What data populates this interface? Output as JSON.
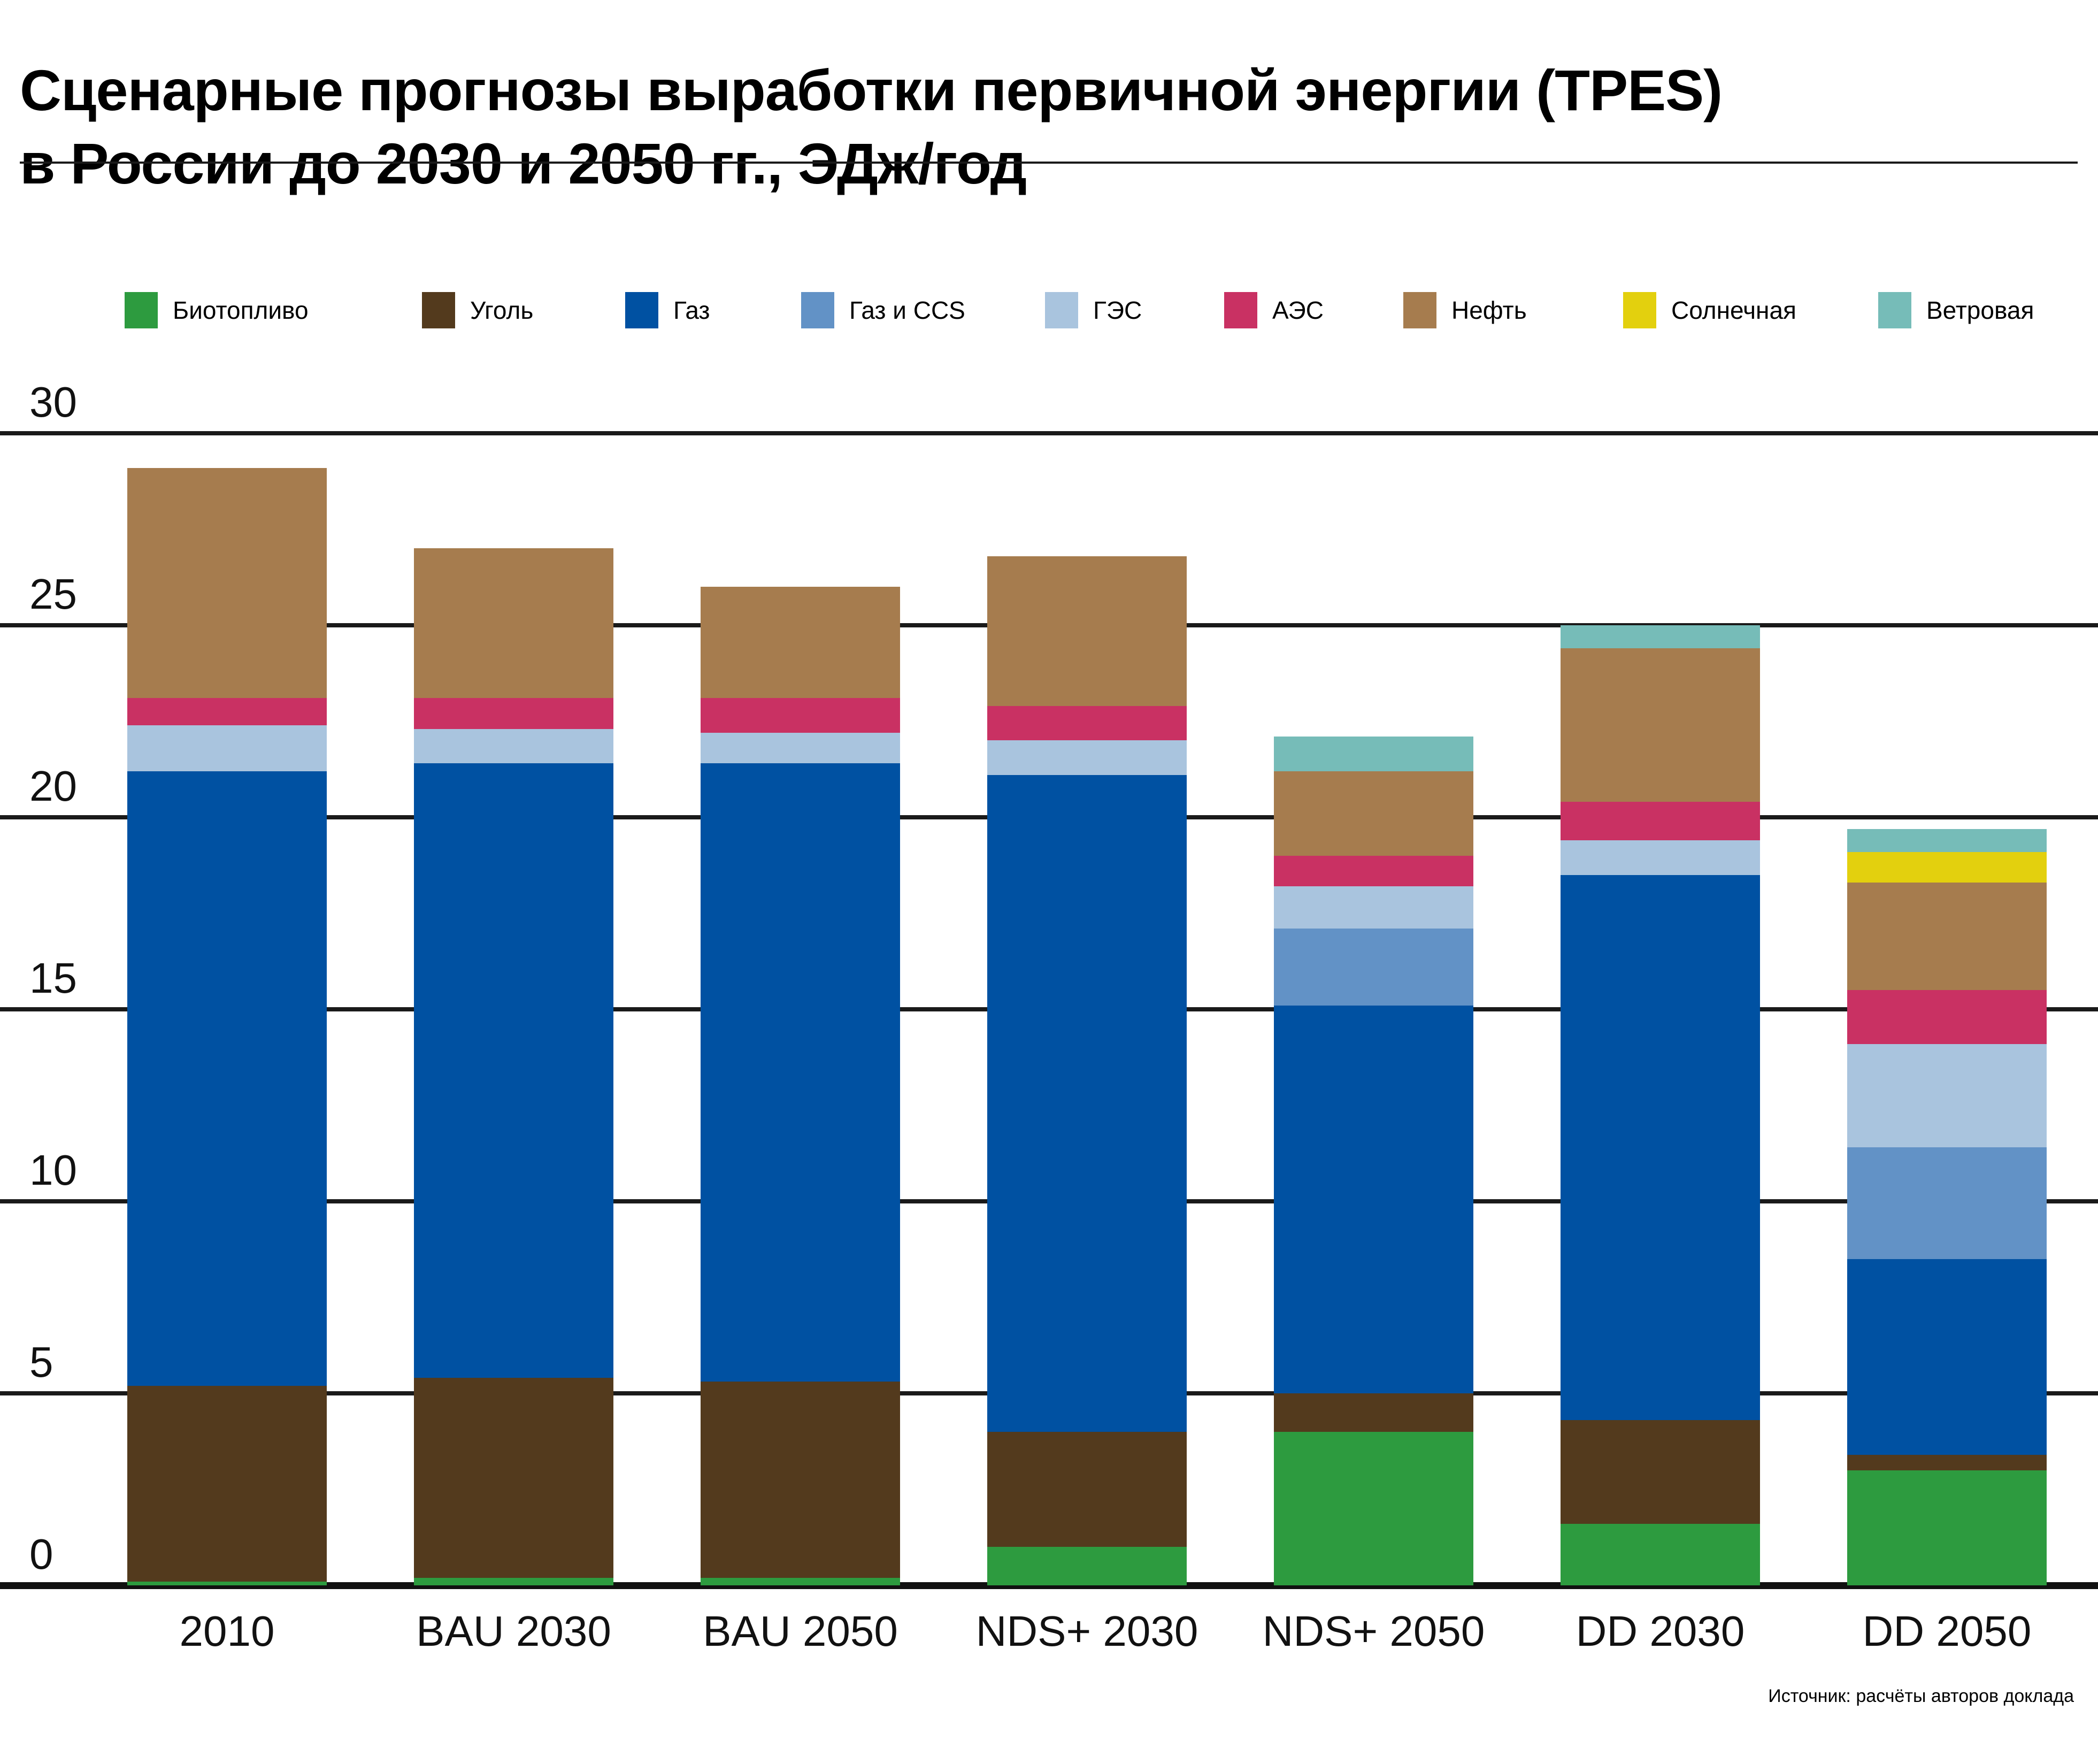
{
  "title": {
    "line1": "Сценарные прогнозы выработки первичной энергии (TPES)",
    "line2": "в России до 2030 и 2050 гг., ЭДж/год"
  },
  "source": "Источник: расчёты авторов доклада",
  "chart_data": {
    "type": "bar",
    "stacked": true,
    "title": "Сценарные прогнозы выработки первичной энергии (TPES) в России до 2030 и 2050 гг., ЭДж/год",
    "units": "ЭДж/год",
    "xlabel": "",
    "ylabel": "",
    "ylim": [
      0,
      30
    ],
    "yticks": [
      0,
      5,
      10,
      15,
      20,
      25,
      30
    ],
    "grid": true,
    "legend_position": "top",
    "categories": [
      "2010",
      "BAU 2030",
      "BAU 2050",
      "NDS+ 2030",
      "NDS+ 2050",
      "DD 2030",
      "DD 2050"
    ],
    "totals": [
      29.0,
      27.0,
      26.0,
      26.8,
      22.1,
      25.0,
      19.7
    ],
    "series": [
      {
        "name": "Биотопливо",
        "color": "#2d9b3f",
        "values": [
          0.1,
          0.2,
          0.2,
          1.0,
          4.0,
          1.6,
          3.0
        ]
      },
      {
        "name": "Уголь",
        "color": "#533a1d",
        "values": [
          5.1,
          5.2,
          5.1,
          3.0,
          1.0,
          2.7,
          0.4
        ]
      },
      {
        "name": "Газ",
        "color": "#0051a2",
        "values": [
          16.0,
          16.0,
          16.1,
          17.1,
          10.1,
          14.2,
          5.1
        ]
      },
      {
        "name": "Газ и CCS",
        "color": "#6292c6",
        "values": [
          0,
          0,
          0,
          0,
          2.0,
          0,
          2.9
        ]
      },
      {
        "name": "ГЭС",
        "color": "#a9c4de",
        "values": [
          1.2,
          0.9,
          0.8,
          0.9,
          1.1,
          0.9,
          2.7
        ]
      },
      {
        "name": "АЭС",
        "color": "#c93163",
        "values": [
          0.7,
          0.8,
          0.9,
          0.9,
          0.8,
          1.0,
          1.4
        ]
      },
      {
        "name": "Нефть",
        "color": "#a67c4e",
        "values": [
          6.0,
          3.9,
          2.9,
          3.9,
          2.2,
          4.0,
          2.8
        ]
      },
      {
        "name": "Солнечная",
        "color": "#e3d00e",
        "values": [
          0,
          0,
          0,
          0,
          0,
          0,
          0.8
        ]
      },
      {
        "name": "Ветровая",
        "color": "#76bcb8",
        "values": [
          0,
          0,
          0,
          0,
          0.9,
          0.6,
          0.6
        ]
      }
    ]
  }
}
